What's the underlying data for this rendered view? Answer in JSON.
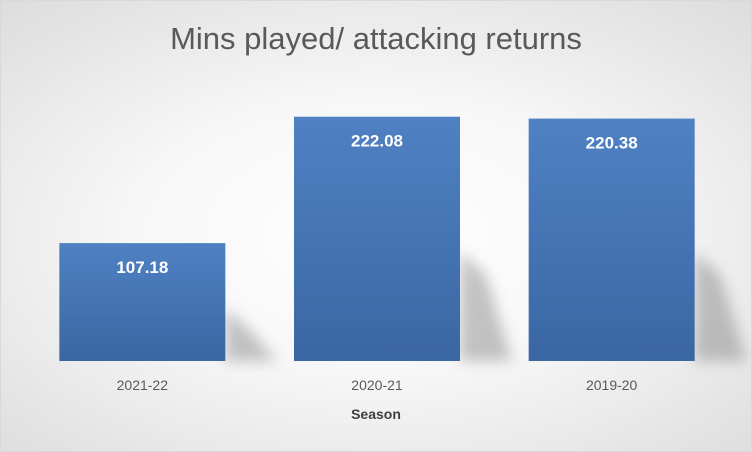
{
  "chart_data": {
    "type": "bar",
    "title": "Mins played/ attacking returns",
    "xlabel": "Season",
    "ylabel": "",
    "categories": [
      "2021-22",
      "2020-21",
      "2019-20"
    ],
    "values": [
      107.18,
      222.08,
      220.38
    ],
    "value_labels": [
      "107.18",
      "222.08",
      "220.38"
    ],
    "ylim": [
      0,
      240
    ],
    "grid": false,
    "legend": "none",
    "colors": {
      "bar_top": "#4f81c3",
      "bar_bottom": "#3a67a3"
    }
  }
}
